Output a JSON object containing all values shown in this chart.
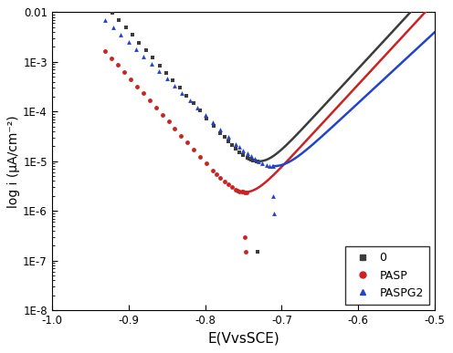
{
  "title": "",
  "xlabel": "E(VvsSCE)",
  "ylabel": "log i (μA/cm⁻²)",
  "xlim": [
    -1.0,
    -0.5
  ],
  "ylim_log": [
    1e-08,
    0.01
  ],
  "background_color": "#ffffff",
  "legend_labels": [
    "0",
    "PASP",
    "PASPG2"
  ],
  "colors": [
    "#3c3c3c",
    "#cc2222",
    "#2244cc"
  ],
  "blank_E_corr": -0.73,
  "blank_i_corr": 5e-06,
  "blank_ba": 0.06,
  "blank_bc": 0.058,
  "pasp_E_corr": -0.748,
  "pasp_i_corr": 1.2e-06,
  "pasp_ba": 0.06,
  "pasp_bc": 0.058,
  "paspg2_E_corr": -0.71,
  "paspg2_i_corr": 4e-06,
  "paspg2_ba": 0.07,
  "paspg2_bc": 0.068
}
